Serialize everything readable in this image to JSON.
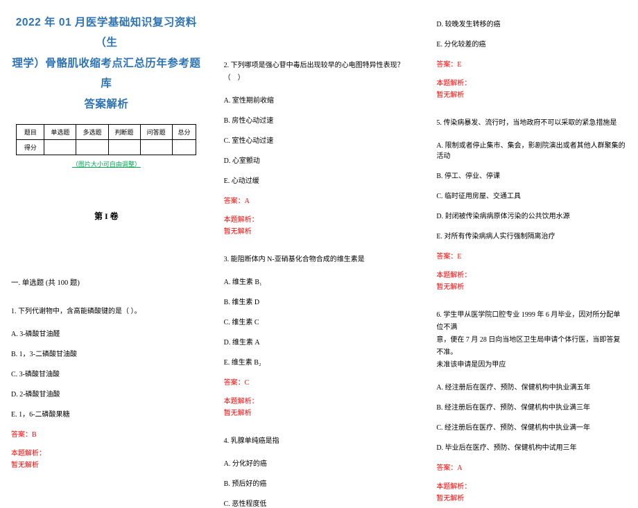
{
  "colors": {
    "title": "#2e74b5",
    "green": "#00a650",
    "red": "#ff0000",
    "text": "#000000",
    "bg": "#ffffff",
    "border": "#000000"
  },
  "typography": {
    "title_fontsize": 15.5,
    "body_fontsize": 10,
    "section_fontsize": 10.5,
    "volume_fontsize": 12
  },
  "title_line1": "2022 年 01 月医学基础知识复习资料（生",
  "title_line2": "理学）骨骼肌收缩考点汇总历年参考题库",
  "title_line3": "答案解析",
  "score_table": {
    "row1": [
      "题目",
      "单选题",
      "多选题",
      "判断题",
      "问答题",
      "总分"
    ],
    "row2_label": "得分"
  },
  "img_note": "（图片大小可自由调整）",
  "volume": "第 I 卷",
  "section": "一. 单选题 (共 100 题)",
  "answer_prefix": "答案：",
  "analysis_label": "本题解析：",
  "analysis_none": "暂无解析",
  "q1": {
    "stem": "1. 下列代谢物中，含高能磷酸键的是（ ）。",
    "A": "A. 3-磷酸甘油醛",
    "B": "B. 1，3-二磷酸甘油酸",
    "C": "C. 3-磷酸甘油酸",
    "D": "D. 2-磷酸甘油酸",
    "E": "E. 1，6-二磷酸果糖",
    "ans": "B"
  },
  "q2": {
    "stem": "2. 下列哪项是强心苷中毒后出现较早的心电图特异性表现？（　）",
    "A": "A. 室性期前收缩",
    "B": "B. 房性心动过速",
    "C": "C. 室性心动过速",
    "D": "D. 心室颤动",
    "E": "E. 心动过缓",
    "ans": "A"
  },
  "q3": {
    "stem": "3. 能阻断体内 N-亚硝基化合物合成的维生素是",
    "A": "A. 维生素 B₁",
    "B": "B. 维生素 D",
    "C": "C. 维生素 C",
    "D": "D. 维生素 A",
    "E": "E. 维生素 B₂",
    "ans": "C"
  },
  "q4": {
    "stem": "4. 乳腺单纯癌是指",
    "A": "A. 分化好的癌",
    "B": "B. 预后好的癌",
    "C": "C. 恶性程度低",
    "D": "D. 较晚发生转移的癌",
    "E": "E. 分化较差的癌",
    "ans": "E"
  },
  "q5": {
    "stem": "5. 传染病暴发、流行时，当地政府不可以采取的紧急措施是",
    "A": "A. 限制或者停止集市、集会，影剧院演出或者其他人群聚集的活动",
    "B": "B. 停工、停业、停课",
    "C": "C. 临时征用房屋、交通工具",
    "D": "D. 封闭被传染病病原体污染的公共饮用水源",
    "E": "E. 对所有传染病病人实行强制隔离治疗",
    "ans": "E"
  },
  "q6": {
    "stem1": "6. 学生甲从医学院口腔专业 1999 年 6 月毕业，因对所分配单位不满",
    "stem2": "意，便在 7 月 28 日向当地区卫生局申请个体行医，当即答复不准。",
    "stem3": "未准该申请是因为甲应",
    "A": "A. 经注册后在医疗、预防、保健机构中执业满五年",
    "B": "B. 经注册后在医疗、预防、保健机构中执业满三年",
    "C": "C. 经注册后在医疗、预防、保健机构中执业满一年",
    "D": "D. 毕业后在医疗、预防、保健机构中试用三年",
    "ans": "A"
  }
}
